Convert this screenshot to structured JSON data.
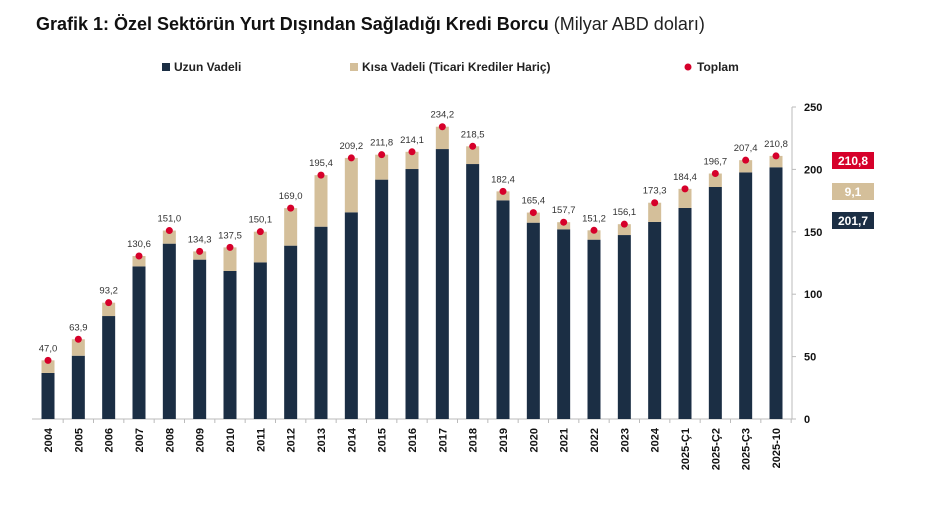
{
  "chart_data": {
    "type": "bar",
    "stacked": true,
    "title": "Grafik 1: Özel Sektörün Yurt Dışından Sağladığı Kredi Borcu",
    "subtitle": "(Milyar ABD doları)",
    "categories": [
      "2004",
      "2005",
      "2006",
      "2007",
      "2008",
      "2009",
      "2010",
      "2011",
      "2012",
      "2013",
      "2014",
      "2015",
      "2016",
      "2017",
      "2018",
      "2019",
      "2020",
      "2021",
      "2022",
      "2023",
      "2024",
      "2025-Ç1",
      "2025-Ç2",
      "2025-Ç3",
      "2025-10"
    ],
    "series": [
      {
        "name": "Uzun Vadeli",
        "type": "bar",
        "color": "#1b2e44",
        "values": [
          36.9,
          50.7,
          82.5,
          122.3,
          140.5,
          127.7,
          118.6,
          125.5,
          138.9,
          154.1,
          165.6,
          191.8,
          200.3,
          216.3,
          204.3,
          175.2,
          157.3,
          152.0,
          143.7,
          147.4,
          157.9,
          169.1,
          185.9,
          197.6,
          201.7
        ]
      },
      {
        "name": "Kısa Vadeli (Ticari Krediler Hariç)",
        "type": "bar",
        "color": "#d4bf9a",
        "values": [
          10.1,
          13.2,
          10.7,
          8.3,
          10.5,
          6.6,
          18.9,
          24.6,
          30.1,
          41.3,
          43.6,
          20.0,
          13.8,
          17.9,
          14.2,
          7.2,
          8.1,
          5.7,
          7.5,
          8.7,
          15.4,
          15.3,
          10.8,
          9.8,
          9.1
        ]
      },
      {
        "name": "Toplam",
        "type": "scatter",
        "color": "#d6002a",
        "values": [
          47.0,
          63.9,
          93.2,
          130.6,
          151.0,
          134.3,
          137.5,
          150.1,
          169.0,
          195.4,
          209.2,
          211.8,
          214.1,
          234.2,
          218.5,
          182.4,
          165.4,
          157.7,
          151.2,
          156.1,
          173.3,
          184.4,
          196.7,
          207.4,
          210.8
        ],
        "labels": [
          "47,0",
          "63,9",
          "93,2",
          "130,6",
          "151,0",
          "134,3",
          "137,5",
          "150,1",
          "169,0",
          "195,4",
          "209,2",
          "211,8",
          "214,1",
          "234,2",
          "218,5",
          "182,4",
          "165,4",
          "157,7",
          "151,2",
          "156,1",
          "173,3",
          "184,4",
          "196,7",
          "207,4",
          "210,8"
        ]
      }
    ],
    "yaxis": {
      "position": "right",
      "ylim": [
        0,
        250
      ],
      "ticks": [
        "0",
        "50",
        "100",
        "150",
        "200",
        "250"
      ]
    },
    "legend": {
      "placement": "top",
      "items": [
        "Uzun Vadeli",
        "Kısa Vadeli (Ticari Krediler Hariç)",
        "Toplam"
      ]
    },
    "grid": false,
    "latest_badges": [
      {
        "label": "210,8",
        "color": "#d6002a"
      },
      {
        "label": "9,1",
        "color": "#d4bf9a"
      },
      {
        "label": "201,7",
        "color": "#1b2e44"
      }
    ]
  }
}
